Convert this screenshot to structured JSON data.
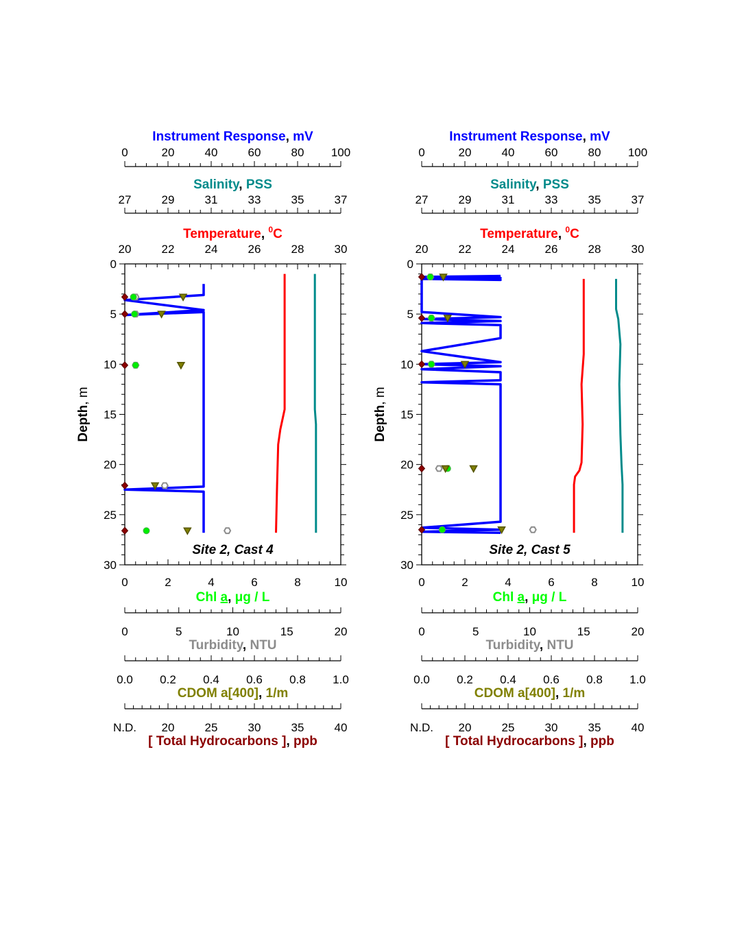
{
  "figure": {
    "ylabel": {
      "name": "Depth",
      "sep": ", ",
      "unit": "m"
    },
    "top_axes": [
      {
        "key": "ir",
        "name": "Instrument Response",
        "sep": ", ",
        "unit": "mV",
        "color": "#0000ff",
        "min": 0,
        "max": 100,
        "ticks": [
          0,
          20,
          40,
          60,
          80,
          100
        ],
        "minor_step": 5
      },
      {
        "key": "sal",
        "name": "Salinity",
        "sep": ", ",
        "unit": "PSS",
        "color": "#008b8b",
        "min": 27,
        "max": 37,
        "ticks": [
          27,
          29,
          31,
          33,
          35,
          37
        ],
        "minor_step": 0.5
      },
      {
        "key": "temp",
        "name": "Temperature",
        "sep": ", ",
        "unit": "C",
        "unit_sup": "0",
        "color": "#ff0000",
        "min": 20,
        "max": 30,
        "ticks": [
          20,
          22,
          24,
          26,
          28,
          30
        ],
        "minor_step": 0.5
      }
    ],
    "bottom_axes": [
      {
        "key": "chl",
        "name": "Chl ",
        "name_u": "a",
        "sep": ", ",
        "unit": "μg / L",
        "color": "#00ff00",
        "min": 0,
        "max": 10,
        "ticks": [
          0,
          2,
          4,
          6,
          8,
          10
        ],
        "minor_step": 0.5
      },
      {
        "key": "turb",
        "name": "Turbidity",
        "sep": ", ",
        "unit": "NTU",
        "color": "#8c8c8c",
        "min": 0,
        "max": 20,
        "ticks": [
          0,
          5,
          10,
          15,
          20
        ],
        "minor_step": 1
      },
      {
        "key": "cdom",
        "name": "CDOM a[400]",
        "sep": ", ",
        "unit": "1/m",
        "color": "#808000",
        "min": 0,
        "max": 1,
        "ticks": [
          "0.0",
          "0.2",
          "0.4",
          "0.6",
          "0.8",
          "1.0"
        ],
        "minor_step": 0.05
      },
      {
        "key": "thc",
        "name": "[ Total Hydrocarbons ]",
        "sep": ", ",
        "unit": "ppb",
        "color": "#8b0000",
        "min": 15,
        "max": 40,
        "ticks": [
          "N.D.",
          "20",
          "25",
          "30",
          "35",
          "40"
        ],
        "minor_step": 1
      }
    ],
    "yaxis": {
      "min": 0,
      "max": 30,
      "ticks": [
        0,
        5,
        10,
        15,
        20,
        25,
        30
      ],
      "minor_step": 1
    }
  },
  "chart_data": [
    {
      "type": "line",
      "title": "Site 2, Cast 4",
      "series": [
        {
          "axis": "ir",
          "values_x_depth": [
            [
              36.5,
              2
            ],
            [
              36.5,
              3.1
            ],
            [
              0,
              3.6
            ],
            [
              36.5,
              4.6
            ],
            [
              0,
              5.1
            ],
            [
              36.5,
              4.8
            ],
            [
              36.5,
              22.2
            ],
            [
              0,
              22.5
            ],
            [
              36.5,
              22.7
            ],
            [
              36.5,
              26.8
            ]
          ]
        },
        {
          "axis": "temp",
          "values_x_depth": [
            [
              27.4,
              1
            ],
            [
              27.4,
              14.5
            ],
            [
              27.2,
              16.5
            ],
            [
              27.1,
              18
            ],
            [
              27.05,
              22
            ],
            [
              27.0,
              26.8
            ]
          ]
        },
        {
          "axis": "sal",
          "values_x_depth": [
            [
              35.8,
              1
            ],
            [
              35.8,
              14.5
            ],
            [
              35.85,
              16
            ],
            [
              35.85,
              26.8
            ]
          ]
        }
      ],
      "samples": [
        {
          "depth": 3.3,
          "thc": 15,
          "chl": 0.4,
          "turb": 1.0,
          "cdom": 0.27
        },
        {
          "depth": 5.0,
          "thc": 15,
          "chl": 0.45,
          "turb": 1.0,
          "cdom": 0.17
        },
        {
          "depth": 10.1,
          "thc": 15,
          "chl": 0.5,
          "turb": 1.0,
          "cdom": 0.26
        },
        {
          "depth": 22.1,
          "thc": 15,
          "turb": 3.7,
          "cdom": 0.14
        },
        {
          "depth": 26.6,
          "thc": 15,
          "chl": 1.0,
          "turb": 9.5,
          "cdom": 0.29
        }
      ]
    },
    {
      "type": "line",
      "title": "Site 2, Cast 5",
      "series": [
        {
          "axis": "ir",
          "values_x_depth": [
            [
              36.5,
              1.2
            ],
            [
              0,
              1.3
            ],
            [
              36.5,
              1.4
            ],
            [
              0,
              1.5
            ],
            [
              36.5,
              1.6
            ],
            [
              0,
              1.4
            ],
            [
              0,
              4.8
            ],
            [
              36.5,
              5.3
            ],
            [
              0,
              5.5
            ],
            [
              36.5,
              5.7
            ],
            [
              0,
              5.9
            ],
            [
              36.5,
              6.1
            ],
            [
              36.5,
              7.4
            ],
            [
              0,
              8.7
            ],
            [
              36.5,
              9.8
            ],
            [
              0,
              10.0
            ],
            [
              36.5,
              10.2
            ],
            [
              0,
              10.5
            ],
            [
              36.5,
              10.8
            ],
            [
              36.5,
              11.6
            ],
            [
              0,
              11.8
            ],
            [
              36.5,
              12.0
            ],
            [
              36.5,
              25.7
            ],
            [
              0,
              26.3
            ],
            [
              36.5,
              26.5
            ],
            [
              0,
              26.7
            ],
            [
              36.5,
              26.8
            ]
          ]
        },
        {
          "axis": "temp",
          "values_x_depth": [
            [
              27.5,
              1.5
            ],
            [
              27.5,
              9
            ],
            [
              27.4,
              12
            ],
            [
              27.45,
              16
            ],
            [
              27.4,
              19.8
            ],
            [
              27.3,
              20.6
            ],
            [
              27.1,
              21.2
            ],
            [
              27.05,
              22
            ],
            [
              27.05,
              26.8
            ]
          ]
        },
        {
          "axis": "sal",
          "values_x_depth": [
            [
              36.0,
              1.5
            ],
            [
              36.0,
              4.5
            ],
            [
              36.1,
              5.5
            ],
            [
              36.2,
              8
            ],
            [
              36.15,
              12
            ],
            [
              36.2,
              17
            ],
            [
              36.25,
              20
            ],
            [
              36.3,
              22
            ],
            [
              36.3,
              26.8
            ]
          ]
        }
      ],
      "samples": [
        {
          "depth": 1.3,
          "thc": 15,
          "chl": 0.4,
          "turb": 0.8,
          "cdom": 0.1
        },
        {
          "depth": 5.4,
          "thc": 15,
          "chl": 0.45,
          "turb": 0.9,
          "cdom": 0.12
        },
        {
          "depth": 10.0,
          "thc": 15,
          "chl": 0.45,
          "turb": 0.9,
          "cdom": 0.2
        },
        {
          "depth": 20.4,
          "thc": 15,
          "chl": 1.2,
          "turb": 1.6,
          "cdom": 0.11,
          "cdom2": 0.24
        },
        {
          "depth": 26.5,
          "thc": 15,
          "chl": 0.95,
          "turb": 10.3,
          "cdom": 0.37
        }
      ]
    }
  ]
}
